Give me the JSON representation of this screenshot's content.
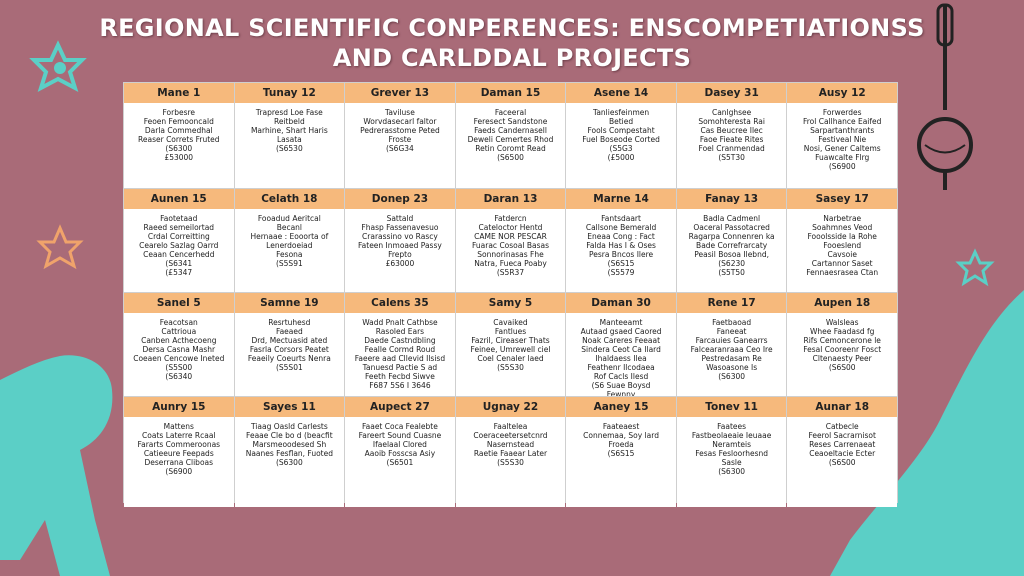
{
  "header": {
    "title_line1": "REGIONAL SCIENTIFIC CONPERENCES: ENSCOMPETIATIONSS",
    "title_line2": "AND CARLDDAL PROJECTS"
  },
  "grid": {
    "rows": [
      [
        {
          "header": "Mane 1",
          "lines": [
            "Forbesre",
            "Feoen Femooncald",
            "Darla Commedhal",
            "Reaser Correts Fruted",
            "(S6300",
            "£53000"
          ]
        },
        {
          "header": "Tunay 12",
          "lines": [
            "Trapresd Loe Fase",
            "Reitbeld",
            "Marhine, Shart Haris",
            "Lasata",
            "(S6530"
          ]
        },
        {
          "header": "Grever 13",
          "lines": [
            "Taviluse",
            "Worvdasecarl faltor",
            "Pedrerasstome Peted",
            "Froste",
            "(S6G34"
          ]
        },
        {
          "header": "Daman 15",
          "lines": [
            "Faceeral",
            "Feresect Sandstone",
            "Faeds Candernasell",
            "Deweli Cemertes Rhod",
            "Retin Coromt Read",
            "(S6500"
          ]
        },
        {
          "header": "Asene 14",
          "lines": [
            "Tanliesfeinmen",
            "Betied",
            "Fools Compestaht",
            "Fuel Boseode Corted",
            "(S5G3",
            "(£5000"
          ]
        },
        {
          "header": "Dasey 31",
          "lines": [
            "Canlghsee",
            "Somohteresta Rai",
            "Cas Beucree Ilec",
            "Faoe Fieate Rites",
            "Foel Cranmendad",
            "(S5T30"
          ]
        },
        {
          "header": "Ausy 12",
          "lines": [
            "Forwerdes",
            "Frol Callhance Eaifed",
            "Sarpartanthrants",
            "Festiveal Nie",
            "Nosi, Gener Caltems",
            "Fuawcalte Flrg",
            "(S6900"
          ]
        }
      ],
      [
        {
          "header": "Aunen 15",
          "lines": [
            "Faotetaad",
            "Raeed semeilortad",
            "Crdal Correitting",
            "Cearelo Sazlag Oarrd",
            "Ceaan Cencerhedd",
            "(S6341",
            "(£5347"
          ]
        },
        {
          "header": "Celath 18",
          "lines": [
            "Fooadud Aeritcal",
            "Becanl",
            "Hernaae : Eooorta of",
            "Lenerdoeiad",
            "Fesona",
            "(S5S91"
          ]
        },
        {
          "header": "Donep 23",
          "lines": [
            "Sattald",
            "Fhasp Fassenavesuo",
            "Crarassino vo Rascy",
            "Fateen Inmoaed Passy",
            "Frepto",
            "£63000"
          ]
        },
        {
          "header": "Daran 13",
          "lines": [
            "Fatdercn",
            "Cateloctor Hentd",
            "CAME NOR PESCAR",
            "Fuarac Cosoal Basas",
            "Sonnorinasas Fhe",
            "Natra, Fueca Poaby",
            "(S5R37"
          ]
        },
        {
          "header": "Marne 14",
          "lines": [
            "Fantsdaart",
            "Callsone Bemerald",
            "Eneaa Cong : Fact",
            "Falda Has I & Oses",
            "Pesra Bncos Ilere",
            "(S6S15",
            "(S5579"
          ]
        },
        {
          "header": "Fanay 13",
          "lines": [
            "Badla Cadmenl",
            "Oaceral Passotacred",
            "Ragarpa Connenren ka",
            "Bade Correfrarcaty",
            "Peasil Bosoa Ilebnd,",
            "(S6230",
            "(S5T50"
          ]
        },
        {
          "header": "Sasey 17",
          "lines": [
            "Narbetrae",
            "Soahmnes Veod",
            "Fooolsside la Rohe",
            "Fooeslend",
            "Cavsoie",
            "Cartannor Saset",
            "Fennaesrasea Ctan"
          ]
        }
      ],
      [
        {
          "header": "Sanel 5",
          "lines": [
            "Feacotsan",
            "Cattrioua",
            "Canben Acthecoeng",
            "Dersa Casna Mashr",
            "Coeaen Cencowe Ineted",
            "(S5S00",
            "(S6340"
          ]
        },
        {
          "header": "Samne 19",
          "lines": [
            "Resrtuhesd",
            "Faeaed",
            "Drd, Mectuasid ated",
            "Fasrla Corsors Peatet",
            "Feaeily Coeurts Nenra",
            "(S5S01"
          ]
        },
        {
          "header": "Calens 35",
          "lines": [
            "Wadd Pnalt Cathbse",
            "Rasoled Ears",
            "Daede Castndbling",
            "Fealle Cormd Roud",
            "Faeere aad Cllevid Ilsisd",
            "Tanuesd Pactie S ad",
            "Feeth Fecbd Siwve",
            "F687 5S6 I 3646"
          ]
        },
        {
          "header": "Samy 5",
          "lines": [
            "Cavaiked",
            "Fantlues",
            "Fazril, Cireaser Thats",
            "Feinee, Umrewell ciel",
            "Coel Cenaler laed",
            "(S5S30"
          ]
        },
        {
          "header": "Daman 30",
          "lines": [
            "Manteeamt",
            "Autaad gsaed Caored",
            "Noak Careres Feeaat",
            "Sindera Ceot Ca Ilard",
            "Ihaldaess Ilea",
            "Feathenr Ilcodaea",
            "Rof Cacls Ilesd",
            "(S6 Suae Boysd",
            "Fewnny"
          ]
        },
        {
          "header": "Rene 17",
          "lines": [
            "Faetbaoad",
            "Faneeat",
            "Farcauies Ganearrs",
            "Falcearanraaa Ceo Ire",
            "Pestredasam Re",
            "Wasoasone Is",
            "(S6300"
          ]
        },
        {
          "header": "Aupen 18",
          "lines": [
            "Walsleas",
            "Whee Faadasd fg",
            "Rifs Cemoncerone le",
            "Fesal Cooreenr Fosct",
            "Cltenaesty Peer",
            "(S6S00"
          ]
        }
      ],
      [
        {
          "header": "Aunry 15",
          "lines": [
            "Mattens",
            "Coats Laterre Rcaal",
            "Fararts Commeroonas",
            "Catieeure Feepads",
            "Deserrana Cliboas",
            "(S6900"
          ]
        },
        {
          "header": "Sayes 11",
          "lines": [
            "Tiaag Oasld Carlests",
            "Feaae Cle bo d (beacfit",
            "Marsmeoodesed Sh",
            "Naanes Fesflan, Fuoted",
            "(S6300"
          ]
        },
        {
          "header": "Aupect 27",
          "lines": [
            "Faaet Coca Fealebte",
            "Fareert Sound Cuasne",
            "Ifaelaal Clored",
            "Aaoib Fosscsa Asiy",
            "(S6501"
          ]
        },
        {
          "header": "Ugnay 22",
          "lines": [
            "Faaltelea",
            "Coeraceetersetcnrd",
            "Nasernstead",
            "Raetie Faaear Later",
            "(S5S30"
          ]
        },
        {
          "header": "Aaney 15",
          "lines": [
            "Faateaest",
            "Connemaa, Soy lard",
            "Froeda",
            "(S6S15"
          ]
        },
        {
          "header": "Tonev 11",
          "lines": [
            "Faatees",
            "Fastbeolaeaie Ieuaae",
            "Neramteis",
            "Fesas Fesloorhesnd",
            "Sasle",
            "(S6300"
          ]
        },
        {
          "header": "Aunar 18",
          "lines": [
            "Catbecle",
            "Feerol Sacrarnisot",
            "Reses Carrenaeat",
            "Ceaoeltacie Ecter",
            "(S6S00"
          ]
        }
      ]
    ]
  }
}
